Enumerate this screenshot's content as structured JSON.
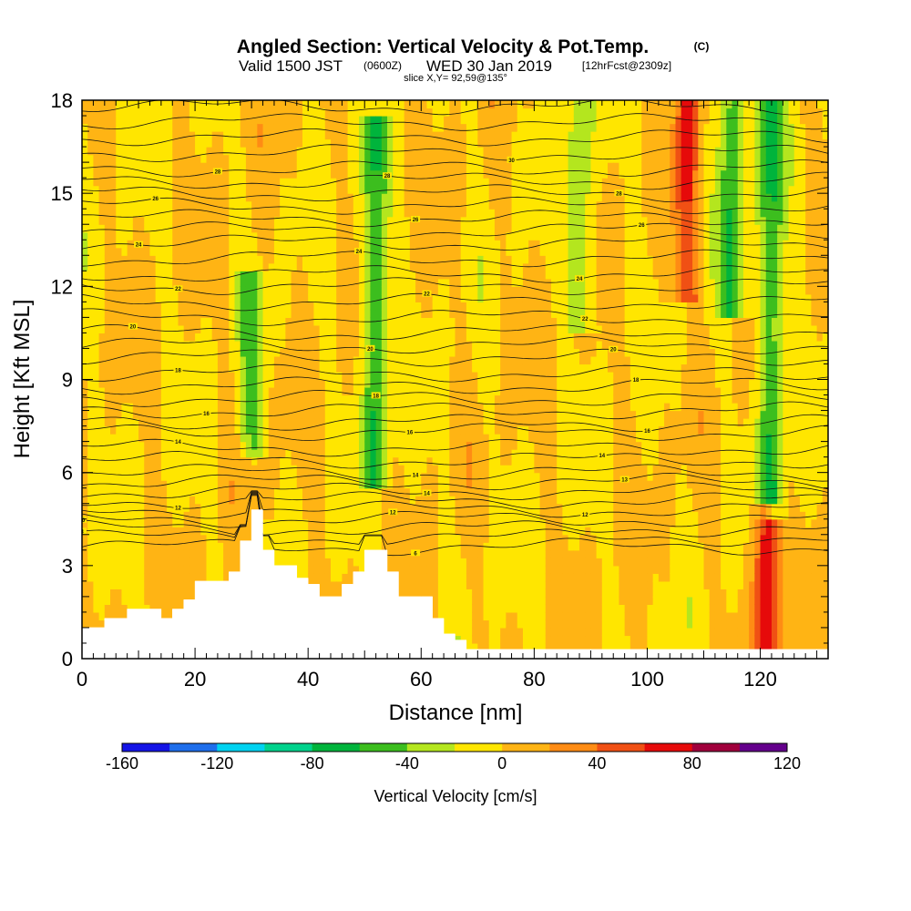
{
  "header": {
    "title": "Angled Section: Vertical Velocity & Pot.Temp.",
    "copyright": "(C)",
    "valid_main": "Valid 1500 JST",
    "valid_utc": "(0600Z)",
    "valid_date": "WED 30 Jan 2019",
    "fcst": "[12hrFcst@2309z]",
    "slice": "slice X,Y= 92,59@135°"
  },
  "chart_data": {
    "type": "heatmap",
    "xlabel": "Distance [nm]",
    "ylabel": "Height [Kft MSL]",
    "xlim": [
      0,
      132
    ],
    "ylim": [
      0,
      18
    ],
    "x_ticks": [
      0,
      20,
      40,
      60,
      80,
      100,
      120
    ],
    "y_ticks": [
      0,
      3,
      6,
      9,
      12,
      15,
      18
    ],
    "colorbar": {
      "label": "Vertical Velocity [cm/s]",
      "tick_labels": [
        "-160",
        "-120",
        "-80",
        "-40",
        "0",
        "40",
        "80",
        "120"
      ],
      "tick_values": [
        -160,
        -120,
        -80,
        -40,
        0,
        40,
        80,
        120
      ],
      "bins": [
        -160,
        -140,
        -120,
        -100,
        -80,
        -60,
        -40,
        -20,
        0,
        20,
        40,
        60,
        80,
        100,
        120
      ],
      "colors": [
        "#1414e6",
        "#1e6eeb",
        "#00d2f0",
        "#00d28c",
        "#00b43c",
        "#3cbe1e",
        "#b4e61e",
        "#ffe600",
        "#ffb414",
        "#ff8c14",
        "#f05014",
        "#e60a0a",
        "#a0003c",
        "#64008c"
      ]
    },
    "velocity_features": [
      {
        "x": 30,
        "y_range": [
          7,
          12
        ],
        "w_cm_s": -40
      },
      {
        "x": 52,
        "y_range": [
          6,
          17
        ],
        "w_cm_s": -60
      },
      {
        "x": 88,
        "y_range": [
          11,
          18
        ],
        "w_cm_s": -40
      },
      {
        "x": 107,
        "y_range": [
          12,
          18
        ],
        "w_cm_s": 60
      },
      {
        "x": 115,
        "y_range": [
          11.5,
          18
        ],
        "w_cm_s": -60
      },
      {
        "x": 122,
        "y_range": [
          5,
          18
        ],
        "w_cm_s": -60
      },
      {
        "x": 121,
        "y_range": [
          0.5,
          4.5
        ],
        "w_cm_s": 80
      }
    ],
    "terrain": {
      "x": [
        0,
        4,
        8,
        12,
        14,
        16,
        18,
        20,
        24,
        26,
        28,
        30,
        32,
        34,
        36,
        38,
        40,
        42,
        44,
        46,
        48,
        50,
        52,
        54,
        56,
        58,
        60,
        62,
        64,
        66,
        68,
        70,
        72,
        132
      ],
      "height": [
        1.0,
        1.3,
        1.6,
        1.6,
        1.3,
        1.6,
        1.9,
        2.5,
        2.5,
        2.8,
        3.8,
        4.8,
        3.5,
        3.0,
        3.0,
        2.6,
        2.4,
        2.0,
        2.0,
        2.4,
        2.8,
        3.5,
        3.5,
        2.8,
        2.0,
        2.0,
        2.0,
        1.3,
        0.8,
        0.6,
        0.3,
        0.3,
        0.3,
        0.3
      ]
    },
    "theta_contours": [
      {
        "label": "6",
        "level": 6,
        "label_x": 59,
        "base_y": 3.6
      },
      {
        "label": "8",
        "level": 8,
        "label_x": 0,
        "base_y": 3.9
      },
      {
        "label": "10",
        "level": 10,
        "label_x": 0,
        "base_y": 4.2
      },
      {
        "label": "12",
        "level": 12,
        "label_x": 55,
        "base_y": 4.5
      },
      {
        "label": "12",
        "level": 12,
        "label_x": 89,
        "base_y": 4.8
      },
      {
        "label": "12",
        "level": 12,
        "label_x": 17,
        "base_y": 5.1
      },
      {
        "label": "14",
        "level": 14,
        "label_x": 61,
        "base_y": 5.4
      },
      {
        "label": "13",
        "level": 13,
        "label_x": 96,
        "base_y": 5.7
      },
      {
        "label": "14",
        "level": 14,
        "label_x": 59,
        "base_y": 6.0
      },
      {
        "label": "14",
        "level": 14,
        "label_x": 92,
        "base_y": 6.4
      },
      {
        "label": "14",
        "level": 14,
        "label_x": 17,
        "base_y": 6.8
      },
      {
        "label": "16",
        "level": 16,
        "label_x": 58,
        "base_y": 7.3
      },
      {
        "label": "16",
        "level": 16,
        "label_x": 100,
        "base_y": 7.6
      },
      {
        "label": "16",
        "level": 16,
        "label_x": 22,
        "base_y": 8.0
      },
      {
        "label": "18",
        "level": 18,
        "label_x": 52,
        "base_y": 8.4
      },
      {
        "label": "18",
        "level": 18,
        "label_x": 98,
        "base_y": 8.8
      },
      {
        "label": "18",
        "level": 18,
        "label_x": 17,
        "base_y": 9.2
      },
      {
        "label": "20",
        "level": 20,
        "label_x": 94,
        "base_y": 9.7
      },
      {
        "label": "20",
        "level": 20,
        "label_x": 51,
        "base_y": 10.1
      },
      {
        "label": "20",
        "level": 20,
        "label_x": 9,
        "base_y": 10.5
      },
      {
        "label": "22",
        "level": 22,
        "label_x": 89,
        "base_y": 11.0
      },
      {
        "label": "22",
        "level": 22,
        "label_x": 61,
        "base_y": 11.5
      },
      {
        "label": "22",
        "level": 22,
        "label_x": 17,
        "base_y": 12.0
      },
      {
        "label": "24",
        "level": 24,
        "label_x": 88,
        "base_y": 12.4
      },
      {
        "label": "24",
        "level": 24,
        "label_x": 49,
        "base_y": 12.9
      },
      {
        "label": "24",
        "level": 24,
        "label_x": 10,
        "base_y": 13.4
      },
      {
        "label": "26",
        "level": 26,
        "label_x": 99,
        "base_y": 13.8
      },
      {
        "label": "26",
        "level": 26,
        "label_x": 59,
        "base_y": 14.2
      },
      {
        "label": "26",
        "level": 26,
        "label_x": 13,
        "base_y": 14.6
      },
      {
        "label": "28",
        "level": 28,
        "label_x": 95,
        "base_y": 15.0
      },
      {
        "label": "28",
        "level": 28,
        "label_x": 54,
        "base_y": 15.4
      },
      {
        "label": "28",
        "level": 28,
        "label_x": 24,
        "base_y": 15.8
      },
      {
        "label": "30",
        "level": 30,
        "label_x": 76,
        "base_y": 16.3
      },
      {
        "label": "",
        "level": 30,
        "label_x": 0,
        "base_y": 16.8
      },
      {
        "label": "",
        "level": 32,
        "label_x": 0,
        "base_y": 17.3
      },
      {
        "label": "",
        "level": 32,
        "label_x": 0,
        "base_y": 17.8
      }
    ]
  }
}
